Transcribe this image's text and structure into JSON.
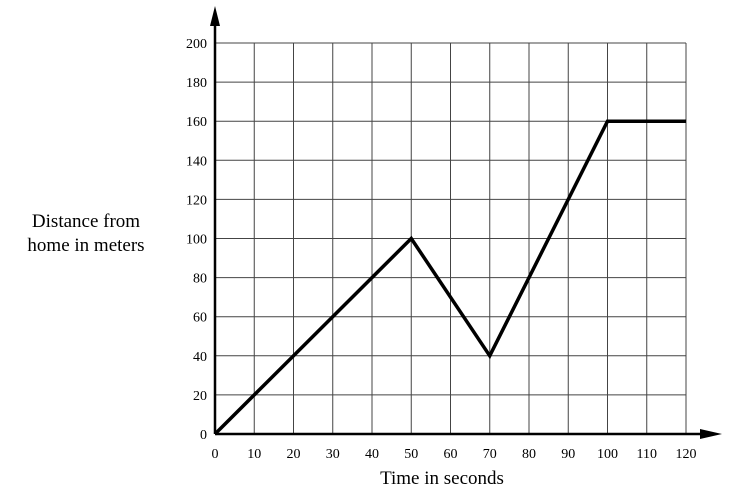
{
  "chart_data": {
    "type": "line",
    "title": "",
    "xlabel": "Time in seconds",
    "ylabel_lines": [
      "Distance from",
      "home in meters"
    ],
    "xlim": [
      0,
      120
    ],
    "ylim": [
      0,
      200
    ],
    "x_ticks": [
      0,
      10,
      20,
      30,
      40,
      50,
      60,
      70,
      80,
      90,
      100,
      110,
      120
    ],
    "y_ticks": [
      0,
      20,
      40,
      60,
      80,
      100,
      120,
      140,
      160,
      180,
      200
    ],
    "grid": true,
    "series": [
      {
        "x": [
          0,
          50,
          70,
          100,
          120
        ],
        "y": [
          0,
          100,
          40,
          160,
          160
        ]
      }
    ]
  }
}
